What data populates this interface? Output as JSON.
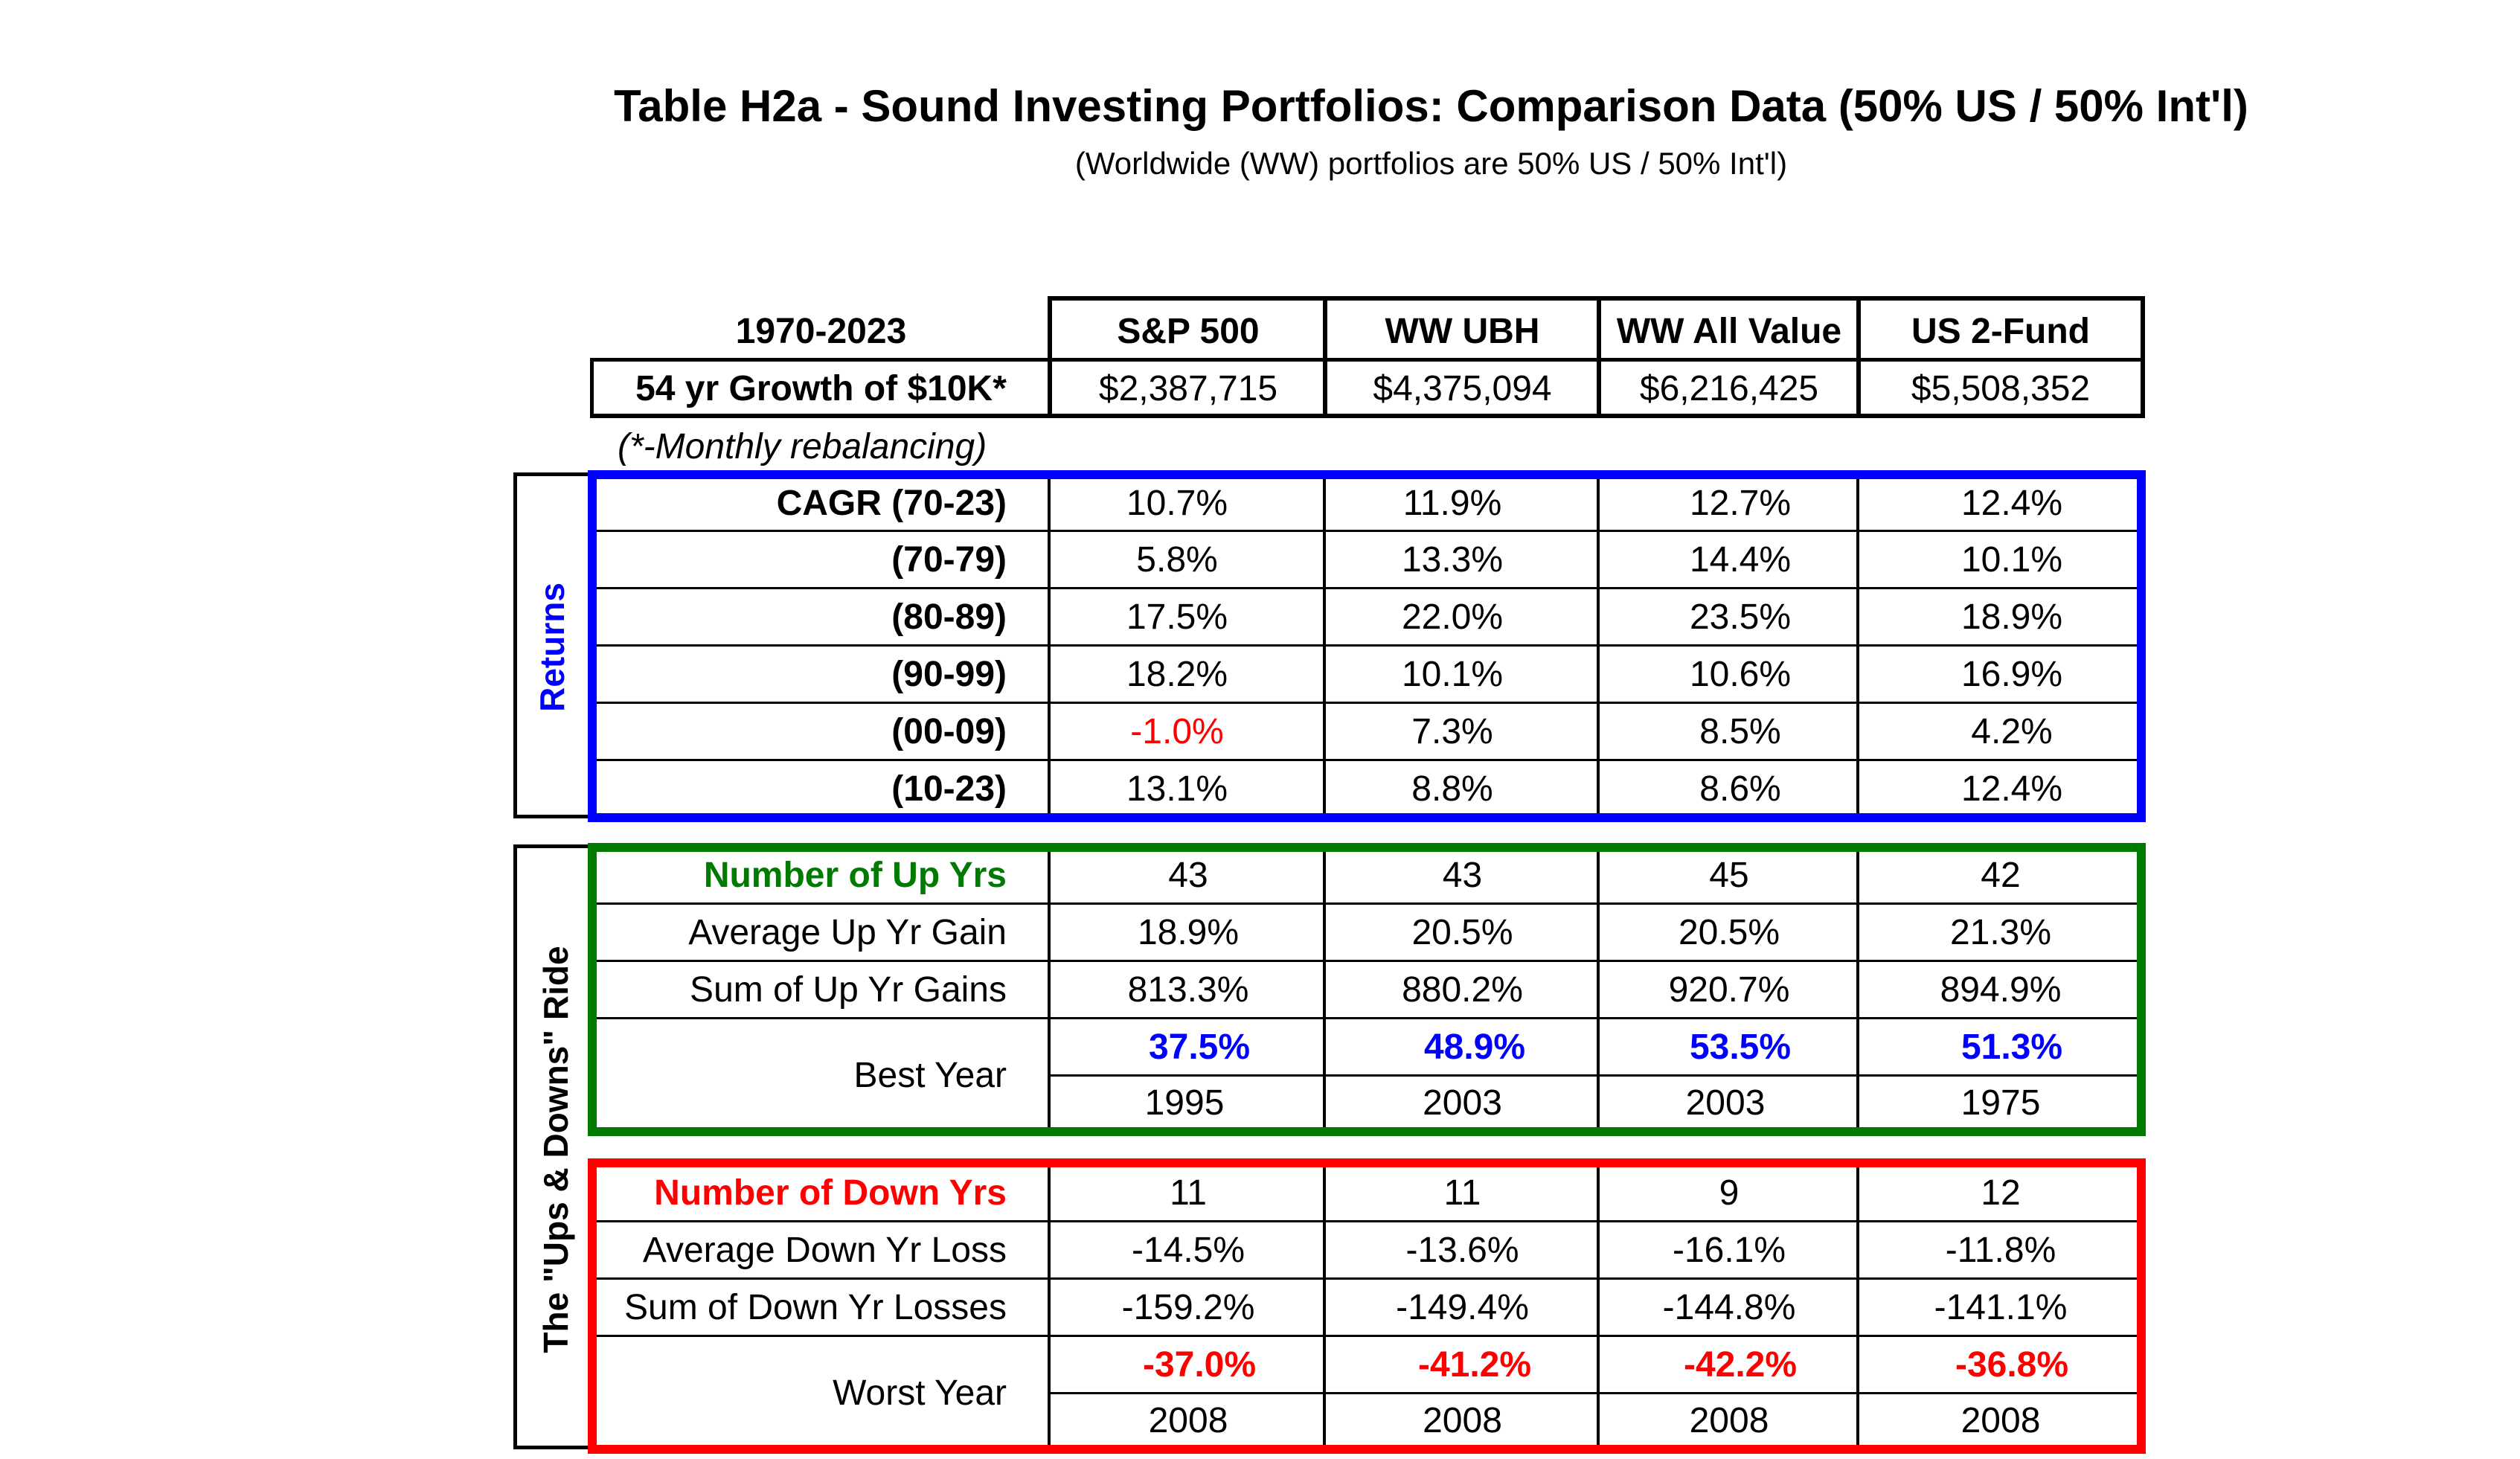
{
  "title": "Table H2a - Sound Investing Portfolios: Comparison Data (50% US / 50% Int'l)",
  "subtitle": "(Worldwide (WW) portfolios are 50% US / 50% Int'l)",
  "header": {
    "period": "1970-2023",
    "columns": [
      "S&P 500",
      "WW UBH",
      "WW All Value",
      "US 2-Fund"
    ],
    "growth_label": "54  yr Growth of $10K*",
    "growth_values": [
      "$2,387,715",
      "$4,375,094",
      "$6,216,425",
      "$5,508,352"
    ],
    "footnote": "(*-Monthly rebalancing)"
  },
  "returns": {
    "section_label": "Returns",
    "rows": [
      {
        "label": "CAGR (70-23)",
        "values": [
          "10.7%",
          "11.9%",
          "12.7%",
          "12.4%"
        ]
      },
      {
        "label": "(70-79)",
        "values": [
          "5.8%",
          "13.3%",
          "14.4%",
          "10.1%"
        ]
      },
      {
        "label": "(80-89)",
        "values": [
          "17.5%",
          "22.0%",
          "23.5%",
          "18.9%"
        ]
      },
      {
        "label": "(90-99)",
        "values": [
          "18.2%",
          "10.1%",
          "10.6%",
          "16.9%"
        ]
      },
      {
        "label": "(00-09)",
        "values": [
          "-1.0%",
          "7.3%",
          "8.5%",
          "4.2%"
        ]
      },
      {
        "label": "(10-23)",
        "values": [
          "13.1%",
          "8.8%",
          "8.6%",
          "12.4%"
        ]
      }
    ]
  },
  "ups_downs": {
    "section_label": "The \"Ups & Downs\" Ride",
    "up": {
      "count_label": "Number of Up Yrs",
      "count_values": [
        "43",
        "43",
        "45",
        "42"
      ],
      "avg_label": "Average Up Yr Gain",
      "avg_values": [
        "18.9%",
        "20.5%",
        "20.5%",
        "21.3%"
      ],
      "sum_label": "Sum of Up Yr Gains",
      "sum_values": [
        "813.3%",
        "880.2%",
        "920.7%",
        "894.9%"
      ],
      "best_label": "Best Year",
      "best_values": [
        "37.5%",
        "48.9%",
        "53.5%",
        "51.3%"
      ],
      "best_years": [
        "1995",
        "2003",
        "2003",
        "1975"
      ]
    },
    "down": {
      "count_label": "Number of Down Yrs",
      "count_values": [
        "11",
        "11",
        "9",
        "12"
      ],
      "avg_label": "Average Down Yr Loss",
      "avg_values": [
        "-14.5%",
        "-13.6%",
        "-16.1%",
        "-11.8%"
      ],
      "sum_label": "Sum of Down Yr Losses",
      "sum_values": [
        "-159.2%",
        "-149.4%",
        "-144.8%",
        "-141.1%"
      ],
      "worst_label": "Worst Year",
      "worst_values": [
        "-37.0%",
        "-41.2%",
        "-42.2%",
        "-36.8%"
      ],
      "worst_years": [
        "2008",
        "2008",
        "2008",
        "2008"
      ]
    }
  },
  "colors": {
    "returns_box": "#0000ff",
    "up_box": "#007a00",
    "down_box": "#ff0000",
    "highlight_positive": "#0000ff",
    "highlight_negative": "#ff0000"
  }
}
